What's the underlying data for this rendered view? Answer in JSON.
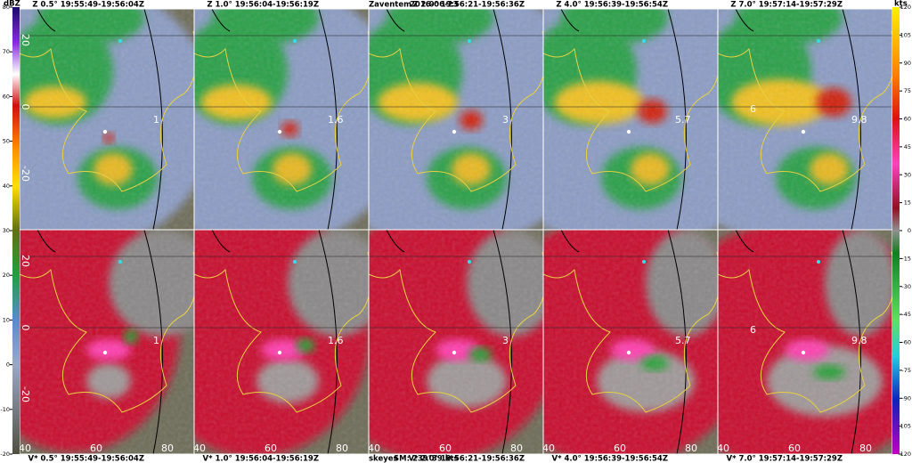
{
  "header": {
    "site": "Zaventem",
    "date": "2016-06-23",
    "agency": "skeyes",
    "storm_motion": "SM: 239°39 kts"
  },
  "colorbars": {
    "left": {
      "unit": "dBZ",
      "ticks": [
        80,
        70,
        60,
        50,
        40,
        30,
        20,
        10,
        0,
        -10,
        -20
      ]
    },
    "right": {
      "unit": "kts",
      "ticks": [
        120,
        105,
        90,
        75,
        60,
        45,
        30,
        15,
        0,
        -15,
        -30,
        -45,
        -60,
        -75,
        -90,
        -105,
        -120
      ]
    }
  },
  "rows": [
    {
      "titles": [
        "Z 0.5° 19:55:49-19:56:04Z",
        "Z 1.0° 19:56:04-19:56:19Z",
        "Z 2.0° 19:56:21-19:56:36Z",
        "Z 4.0° 19:56:39-19:56:54Z",
        "Z 7.0° 19:57:14-19:57:29Z"
      ]
    },
    {
      "titles": [
        "V* 0.5° 19:55:49-19:56:04Z",
        "V* 1.0° 19:56:04-19:56:19Z",
        "V* 2.0° 19:56:21-19:56:36Z",
        "V* 4.0° 19:56:39-19:56:54Z",
        "V* 7.0° 19:57:14-19:57:29Z"
      ]
    }
  ],
  "range_labels": [
    [
      "1"
    ],
    [
      "1.6"
    ],
    [
      "3"
    ],
    [
      "5.7"
    ],
    [
      "6",
      "9.8"
    ]
  ],
  "panel_axes": {
    "y_ticks": [
      20,
      0,
      -20
    ],
    "x_ticks": [
      40,
      60,
      80
    ]
  }
}
